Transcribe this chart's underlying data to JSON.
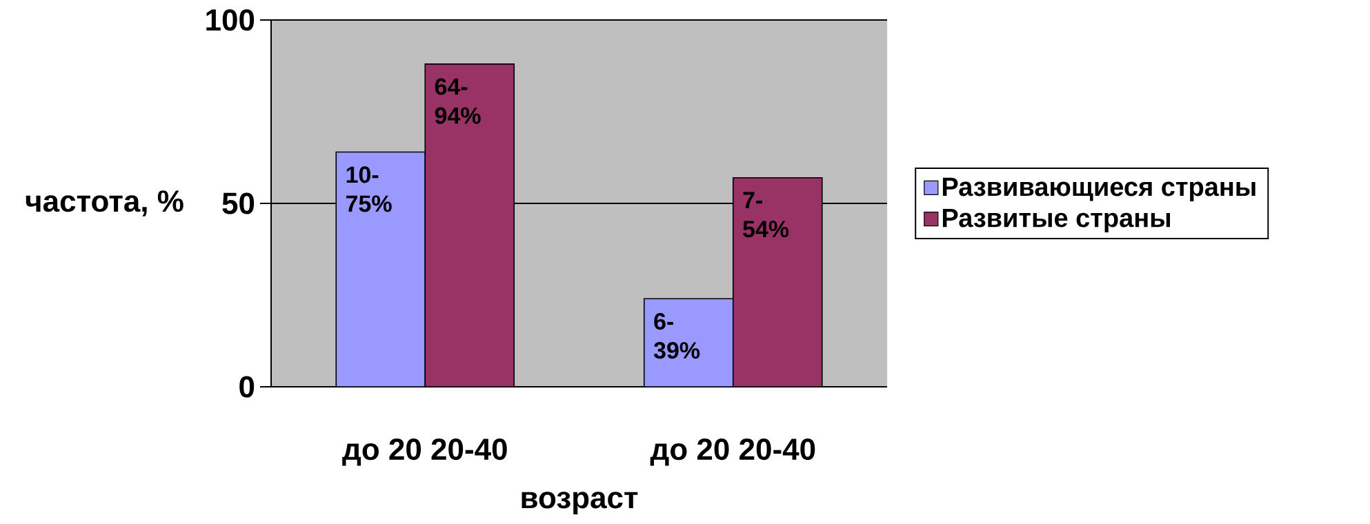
{
  "chart_data": {
    "type": "bar",
    "xlabel": "возраст",
    "ylabel": "частота, %",
    "categories": [
      "до 20 20-40",
      "до 20 20-40"
    ],
    "series": [
      {
        "name": "Развивающиеся страны",
        "color": "#9999ff",
        "values": [
          64,
          24
        ]
      },
      {
        "name": "Развитые страны",
        "color": "#993366",
        "values": [
          88,
          57
        ]
      }
    ],
    "annotations": [
      "10-75%",
      "6-39%",
      "64-94%",
      "7-54%"
    ],
    "ylim": [
      0,
      100
    ],
    "yticks": [
      0,
      50,
      100
    ],
    "grid": "y",
    "legend": "right"
  }
}
